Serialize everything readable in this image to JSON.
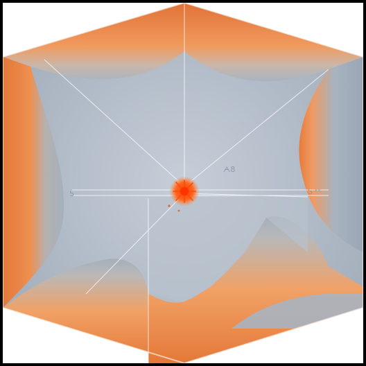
{
  "image": {
    "description_tags": [],
    "colors": {
      "frame": "#000000",
      "background": "#ffffff",
      "orange_main": "#e87a3d",
      "orange_light": "#f3a56b",
      "orange_deep": "#d9692e",
      "grey_blue": "#a7b2bf",
      "grey_blue_light": "#c2cad3",
      "grey_blue_dark": "#8d99a8",
      "burst": "#ff5a12"
    },
    "marks": {
      "top_right_label": "ᗅ8",
      "left_label": "ᕊ",
      "right_label": "ᕊ ᵏᵏ"
    }
  }
}
